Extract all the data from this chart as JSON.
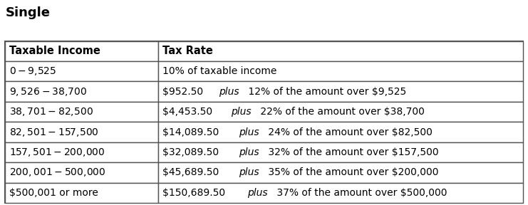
{
  "title": "Single",
  "col_headers": [
    "Taxable Income",
    "Tax Rate"
  ],
  "rows": [
    [
      "$0 - $9,525",
      "10% of taxable income"
    ],
    [
      "$9,526 - $38,700",
      "$952.50 plus 12% of the amount over $9,525"
    ],
    [
      "$38,701 - $82,500",
      "$4,453.50 plus 22% of the amount over $38,700"
    ],
    [
      "$82,501 - $157,500",
      "$14,089.50 plus 24% of the amount over $82,500"
    ],
    [
      "$157,501 - $200,000",
      "$32,089.50 plus 32% of the amount over $157,500"
    ],
    [
      "$200,001 - $500,000",
      "$45,689.50 plus 35% of the amount over $200,000"
    ],
    [
      "$500,001 or more",
      "$150,689.50 plus 37% of the amount over $500,000"
    ]
  ],
  "plus_word": "plus",
  "col_split": 0.295,
  "bg_color": "#ffffff",
  "border_color": "#555555",
  "header_bg": "#ffffff",
  "title_fontsize": 13,
  "header_fontsize": 10.5,
  "cell_fontsize": 10.0
}
